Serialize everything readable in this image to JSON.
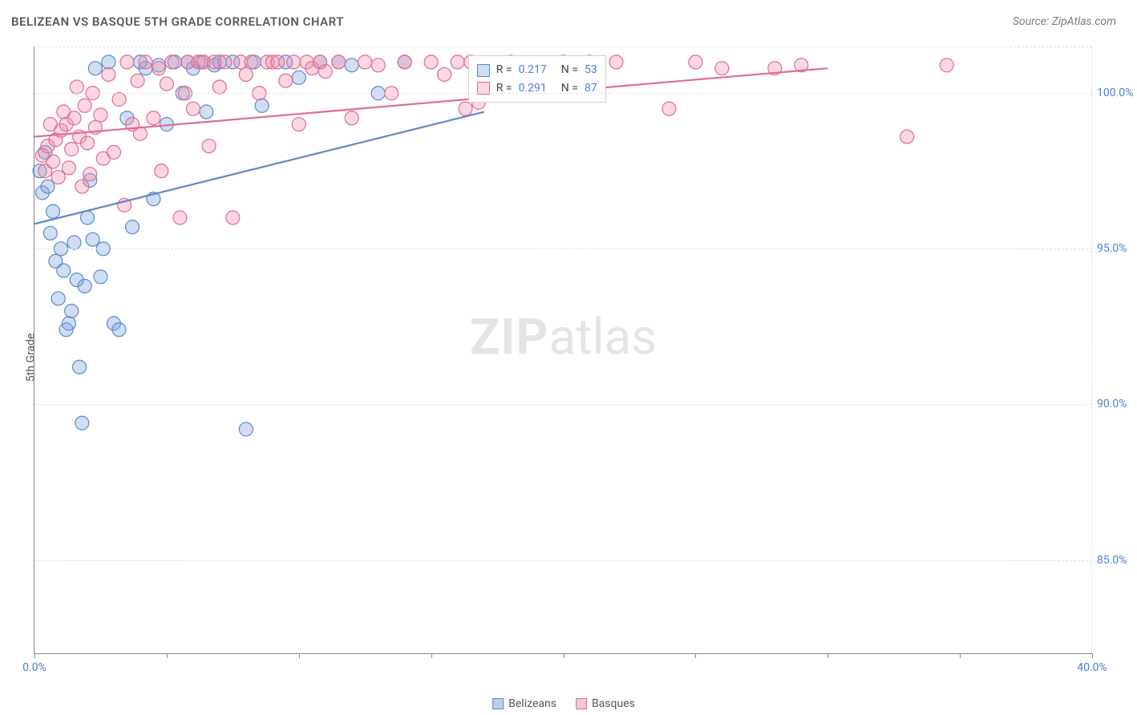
{
  "header": {
    "title": "BELIZEAN VS BASQUE 5TH GRADE CORRELATION CHART",
    "source": "Source: ZipAtlas.com"
  },
  "axes": {
    "ylabel": "5th Grade",
    "xlim": [
      0,
      40
    ],
    "ylim": [
      82,
      101.5
    ],
    "yticks": [
      {
        "v": 85,
        "label": "85.0%"
      },
      {
        "v": 90,
        "label": "90.0%"
      },
      {
        "v": 95,
        "label": "95.0%"
      },
      {
        "v": 100,
        "label": "100.0%"
      }
    ],
    "xticks": [
      {
        "v": 0,
        "label": "0.0%"
      },
      {
        "v": 5,
        "label": ""
      },
      {
        "v": 10,
        "label": ""
      },
      {
        "v": 15,
        "label": ""
      },
      {
        "v": 20,
        "label": ""
      },
      {
        "v": 25,
        "label": ""
      },
      {
        "v": 30,
        "label": ""
      },
      {
        "v": 35,
        "label": ""
      },
      {
        "v": 40,
        "label": "40.0%"
      }
    ]
  },
  "series": [
    {
      "name": "Belizeans",
      "color_fill": "rgba(120,160,220,0.35)",
      "color_stroke": "#5b89c9",
      "trend": {
        "x1": 0,
        "y1": 95.8,
        "x2": 17,
        "y2": 99.4
      },
      "stats": {
        "R_label": "R =",
        "R": "0.217",
        "N_label": "N =",
        "N": "53"
      },
      "points": [
        [
          0.2,
          97.5
        ],
        [
          0.3,
          96.8
        ],
        [
          0.4,
          98.1
        ],
        [
          0.5,
          97.0
        ],
        [
          0.6,
          95.5
        ],
        [
          0.7,
          96.2
        ],
        [
          0.8,
          94.6
        ],
        [
          0.9,
          93.4
        ],
        [
          1.0,
          95.0
        ],
        [
          1.1,
          94.3
        ],
        [
          1.2,
          92.4
        ],
        [
          1.3,
          92.6
        ],
        [
          1.4,
          93.0
        ],
        [
          1.5,
          95.2
        ],
        [
          1.6,
          94.0
        ],
        [
          1.7,
          91.2
        ],
        [
          1.8,
          89.4
        ],
        [
          1.9,
          93.8
        ],
        [
          2.0,
          96.0
        ],
        [
          2.1,
          97.2
        ],
        [
          2.2,
          95.3
        ],
        [
          2.3,
          100.8
        ],
        [
          2.5,
          94.1
        ],
        [
          2.6,
          95.0
        ],
        [
          2.8,
          101.0
        ],
        [
          3.0,
          92.6
        ],
        [
          3.2,
          92.4
        ],
        [
          3.5,
          99.2
        ],
        [
          3.7,
          95.7
        ],
        [
          4.0,
          101.0
        ],
        [
          4.2,
          100.8
        ],
        [
          4.5,
          96.6
        ],
        [
          4.7,
          100.9
        ],
        [
          5.0,
          99.0
        ],
        [
          5.3,
          101.0
        ],
        [
          5.6,
          100.0
        ],
        [
          5.8,
          101.0
        ],
        [
          6.0,
          100.8
        ],
        [
          6.3,
          101.0
        ],
        [
          6.5,
          99.4
        ],
        [
          6.8,
          100.9
        ],
        [
          7.0,
          101.0
        ],
        [
          7.5,
          101.0
        ],
        [
          8.0,
          89.2
        ],
        [
          8.3,
          101.0
        ],
        [
          8.6,
          99.6
        ],
        [
          9.5,
          101.0
        ],
        [
          10.0,
          100.5
        ],
        [
          10.8,
          101.0
        ],
        [
          11.5,
          101.0
        ],
        [
          12.0,
          100.9
        ],
        [
          13.0,
          100.0
        ],
        [
          14.0,
          101.0
        ]
      ]
    },
    {
      "name": "Basques",
      "color_fill": "rgba(240,140,170,0.35)",
      "color_stroke": "#e06c93",
      "trend": {
        "x1": 0,
        "y1": 98.6,
        "x2": 30,
        "y2": 100.8
      },
      "stats": {
        "R_label": "R =",
        "R": "0.291",
        "N_label": "N =",
        "N": "87"
      },
      "points": [
        [
          0.3,
          98.0
        ],
        [
          0.4,
          97.5
        ],
        [
          0.5,
          98.3
        ],
        [
          0.6,
          99.0
        ],
        [
          0.7,
          97.8
        ],
        [
          0.8,
          98.5
        ],
        [
          0.9,
          97.3
        ],
        [
          1.0,
          98.8
        ],
        [
          1.1,
          99.4
        ],
        [
          1.2,
          99.0
        ],
        [
          1.3,
          97.6
        ],
        [
          1.4,
          98.2
        ],
        [
          1.5,
          99.2
        ],
        [
          1.6,
          100.2
        ],
        [
          1.7,
          98.6
        ],
        [
          1.8,
          97.0
        ],
        [
          1.9,
          99.6
        ],
        [
          2.0,
          98.4
        ],
        [
          2.1,
          97.4
        ],
        [
          2.2,
          100.0
        ],
        [
          2.3,
          98.9
        ],
        [
          2.5,
          99.3
        ],
        [
          2.6,
          97.9
        ],
        [
          2.8,
          100.6
        ],
        [
          3.0,
          98.1
        ],
        [
          3.2,
          99.8
        ],
        [
          3.4,
          96.4
        ],
        [
          3.5,
          101.0
        ],
        [
          3.7,
          99.0
        ],
        [
          3.9,
          100.4
        ],
        [
          4.0,
          98.7
        ],
        [
          4.2,
          101.0
        ],
        [
          4.5,
          99.2
        ],
        [
          4.7,
          100.8
        ],
        [
          4.8,
          97.5
        ],
        [
          5.0,
          100.3
        ],
        [
          5.2,
          101.0
        ],
        [
          5.5,
          96.0
        ],
        [
          5.7,
          100.0
        ],
        [
          5.8,
          101.0
        ],
        [
          6.0,
          99.5
        ],
        [
          6.2,
          101.0
        ],
        [
          6.4,
          101.0
        ],
        [
          6.6,
          98.3
        ],
        [
          6.8,
          101.0
        ],
        [
          7.0,
          100.2
        ],
        [
          7.2,
          101.0
        ],
        [
          7.5,
          96.0
        ],
        [
          7.8,
          101.0
        ],
        [
          8.0,
          100.6
        ],
        [
          8.2,
          101.0
        ],
        [
          8.5,
          100.0
        ],
        [
          8.8,
          101.0
        ],
        [
          9.0,
          101.0
        ],
        [
          9.2,
          101.0
        ],
        [
          9.5,
          100.4
        ],
        [
          9.8,
          101.0
        ],
        [
          10.0,
          99.0
        ],
        [
          10.3,
          101.0
        ],
        [
          10.5,
          100.8
        ],
        [
          10.8,
          101.0
        ],
        [
          11.0,
          100.7
        ],
        [
          11.5,
          101.0
        ],
        [
          12.0,
          99.2
        ],
        [
          12.5,
          101.0
        ],
        [
          13.0,
          100.9
        ],
        [
          13.5,
          100.0
        ],
        [
          14.0,
          101.0
        ],
        [
          15.0,
          101.0
        ],
        [
          15.5,
          100.6
        ],
        [
          16.0,
          101.0
        ],
        [
          16.3,
          99.5
        ],
        [
          16.5,
          101.0
        ],
        [
          16.8,
          99.7
        ],
        [
          18.0,
          101.0
        ],
        [
          19.0,
          100.9
        ],
        [
          20.0,
          101.0
        ],
        [
          20.3,
          100.8
        ],
        [
          21.0,
          101.0
        ],
        [
          22.0,
          101.0
        ],
        [
          24.0,
          99.5
        ],
        [
          25.0,
          101.0
        ],
        [
          26.0,
          100.8
        ],
        [
          28.0,
          100.8
        ],
        [
          29.0,
          100.9
        ],
        [
          33.0,
          98.6
        ],
        [
          34.5,
          100.9
        ]
      ]
    }
  ],
  "legend_bottom": [
    {
      "label": "Belizeans",
      "fill": "rgba(120,160,220,0.5)",
      "stroke": "#5b89c9"
    },
    {
      "label": "Basques",
      "fill": "rgba(240,140,170,0.5)",
      "stroke": "#e06c93"
    }
  ],
  "legend_box": {
    "left_pct": 41,
    "top_pct": 1.5
  },
  "watermark": {
    "zip": "ZIP",
    "rest": "atlas"
  },
  "styling": {
    "marker_radius": 8.5,
    "marker_stroke_width": 1.2,
    "trend_width_primary": 2.2,
    "grid_color": "#e0e0e0",
    "axis_color": "#888",
    "tick_font_color": "#4a7fd6",
    "plot_bg": "#ffffff"
  }
}
